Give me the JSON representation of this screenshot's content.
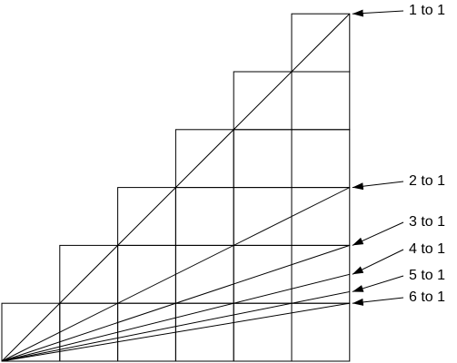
{
  "labels": [
    "1 to 1",
    "2 to 1",
    "3 to 1",
    "4 to 1",
    "5 to 1",
    "6 to 1"
  ]
}
